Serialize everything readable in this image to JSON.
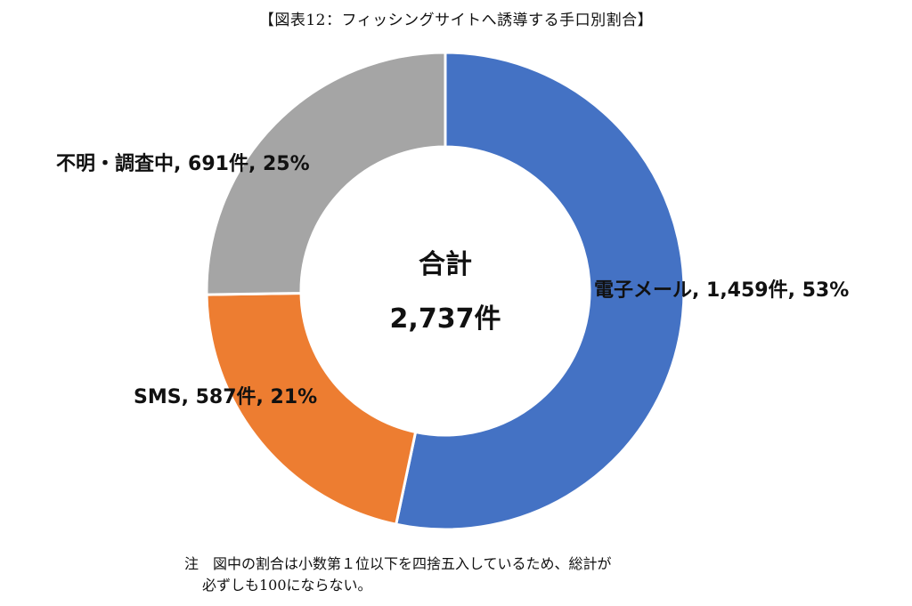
{
  "chart_data": {
    "type": "pie",
    "title": "【図表12：フィッシングサイトへ誘導する手口別割合】",
    "slices": [
      {
        "name": "電子メール",
        "count": 1459,
        "percent": 53,
        "color": "#4472C4",
        "label": "電子メール, 1,459件, 53%"
      },
      {
        "name": "SMS",
        "count": 587,
        "percent": 21,
        "color": "#ED7D31",
        "label": "SMS, 587件, 21%"
      },
      {
        "name": "不明・調査中",
        "count": 691,
        "percent": 25,
        "color": "#A5A5A5",
        "label": "不明・調査中, 691件, 25%"
      }
    ],
    "center_title": "合計",
    "center_value": "2,737件",
    "hole": "donut"
  },
  "note": {
    "line1": "注　図中の割合は小数第１位以下を四捨五入しているため、総計が",
    "line2": "必ずしも100にならない。"
  }
}
